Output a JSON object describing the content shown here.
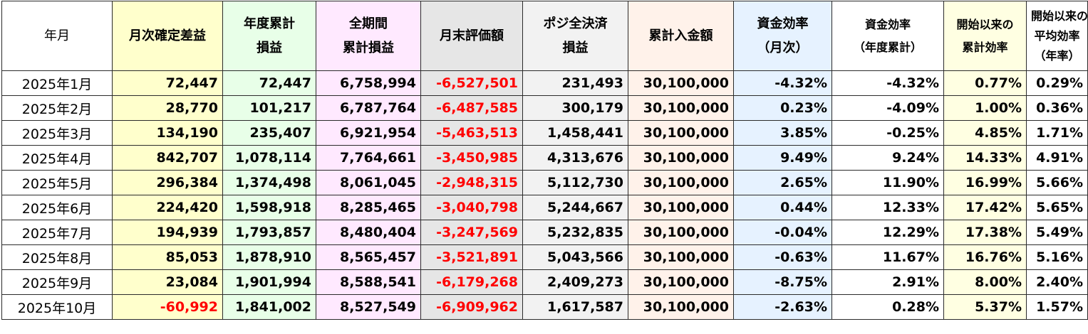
{
  "headers": {
    "month": "年月",
    "monthly_profit": "月次確定差益",
    "ytd_pl_line1": "年度累計",
    "ytd_pl_line2": "損益",
    "total_pl_line1": "全期間",
    "total_pl_line2": "累計損益",
    "month_end_valuation": "月末評価額",
    "full_close_pl_line1": "ポジ全決済",
    "full_close_pl_line2": "損益",
    "cumulative_deposit": "累計入金額",
    "eff_monthly_line1": "資金効率",
    "eff_monthly_line2": "（月次）",
    "eff_ytd_line1": "資金効率",
    "eff_ytd_line2": "（年度累計）",
    "eff_since_start_line1": "開始以来の",
    "eff_since_start_line2": "累計効率",
    "avg_eff_line1": "開始以来の",
    "avg_eff_line2": "平均効率",
    "avg_eff_line3": "（年率）"
  },
  "rows": [
    {
      "month": "2025年1月",
      "monthly_profit": "72,447",
      "ytd_pl": "72,447",
      "total_pl": "6,758,994",
      "valuation": "-6,527,501",
      "full_close_pl": "231,493",
      "deposit": "30,100,000",
      "eff_monthly": "-4.32%",
      "eff_ytd": "-4.32%",
      "eff_cum": "0.77%",
      "eff_avg": "0.29%"
    },
    {
      "month": "2025年2月",
      "monthly_profit": "28,770",
      "ytd_pl": "101,217",
      "total_pl": "6,787,764",
      "valuation": "-6,487,585",
      "full_close_pl": "300,179",
      "deposit": "30,100,000",
      "eff_monthly": "0.23%",
      "eff_ytd": "-4.09%",
      "eff_cum": "1.00%",
      "eff_avg": "0.36%"
    },
    {
      "month": "2025年3月",
      "monthly_profit": "134,190",
      "ytd_pl": "235,407",
      "total_pl": "6,921,954",
      "valuation": "-5,463,513",
      "full_close_pl": "1,458,441",
      "deposit": "30,100,000",
      "eff_monthly": "3.85%",
      "eff_ytd": "-0.25%",
      "eff_cum": "4.85%",
      "eff_avg": "1.71%"
    },
    {
      "month": "2025年4月",
      "monthly_profit": "842,707",
      "ytd_pl": "1,078,114",
      "total_pl": "7,764,661",
      "valuation": "-3,450,985",
      "full_close_pl": "4,313,676",
      "deposit": "30,100,000",
      "eff_monthly": "9.49%",
      "eff_ytd": "9.24%",
      "eff_cum": "14.33%",
      "eff_avg": "4.91%"
    },
    {
      "month": "2025年5月",
      "monthly_profit": "296,384",
      "ytd_pl": "1,374,498",
      "total_pl": "8,061,045",
      "valuation": "-2,948,315",
      "full_close_pl": "5,112,730",
      "deposit": "30,100,000",
      "eff_monthly": "2.65%",
      "eff_ytd": "11.90%",
      "eff_cum": "16.99%",
      "eff_avg": "5.66%"
    },
    {
      "month": "2025年6月",
      "monthly_profit": "224,420",
      "ytd_pl": "1,598,918",
      "total_pl": "8,285,465",
      "valuation": "-3,040,798",
      "full_close_pl": "5,244,667",
      "deposit": "30,100,000",
      "eff_monthly": "0.44%",
      "eff_ytd": "12.33%",
      "eff_cum": "17.42%",
      "eff_avg": "5.65%"
    },
    {
      "month": "2025年7月",
      "monthly_profit": "194,939",
      "ytd_pl": "1,793,857",
      "total_pl": "8,480,404",
      "valuation": "-3,247,569",
      "full_close_pl": "5,232,835",
      "deposit": "30,100,000",
      "eff_monthly": "-0.04%",
      "eff_ytd": "12.29%",
      "eff_cum": "17.38%",
      "eff_avg": "5.49%"
    },
    {
      "month": "2025年8月",
      "monthly_profit": "85,053",
      "ytd_pl": "1,878,910",
      "total_pl": "8,565,457",
      "valuation": "-3,521,891",
      "full_close_pl": "5,043,566",
      "deposit": "30,100,000",
      "eff_monthly": "-0.63%",
      "eff_ytd": "11.67%",
      "eff_cum": "16.76%",
      "eff_avg": "5.16%"
    },
    {
      "month": "2025年9月",
      "monthly_profit": "23,084",
      "ytd_pl": "1,901,994",
      "total_pl": "8,588,541",
      "valuation": "-6,179,268",
      "full_close_pl": "2,409,273",
      "deposit": "30,100,000",
      "eff_monthly": "-8.75%",
      "eff_ytd": "2.91%",
      "eff_cum": "8.00%",
      "eff_avg": "2.40%"
    },
    {
      "month": "2025年10月",
      "monthly_profit": "-60,992",
      "ytd_pl": "1,841,002",
      "total_pl": "8,527,549",
      "valuation": "-6,909,962",
      "full_close_pl": "1,617,587",
      "deposit": "30,100,000",
      "eff_monthly": "-2.63%",
      "eff_ytd": "0.28%",
      "eff_cum": "5.37%",
      "eff_avg": "1.57%"
    }
  ],
  "colors": {
    "negative_text": "#ff0000",
    "monthly_profit_bg": "#ffffcc",
    "ytd_bg": "#e8ffe8",
    "total_bg": "#ffe9ff",
    "valuation_bg": "#e6e6e6",
    "full_close_bg": "#f2f2f2",
    "deposit_bg": "#fff2ea",
    "eff_monthly_bg": "#e6f2ff",
    "eff_cum_bg": "#ffffe2"
  }
}
